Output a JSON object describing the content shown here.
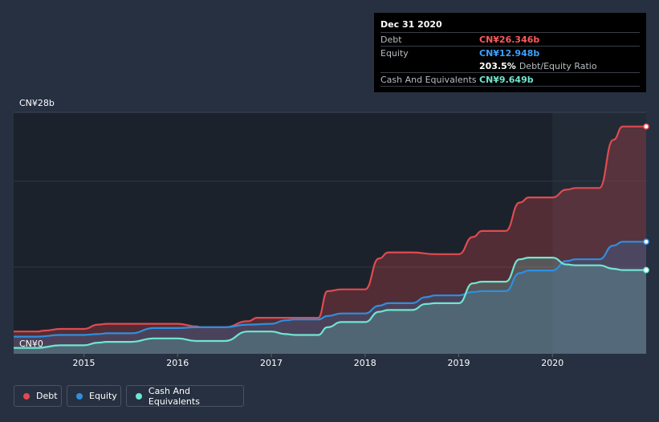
{
  "tooltip": {
    "date": "Dec 31 2020",
    "debt_label": "Debt",
    "debt_value": "CN¥26.346b",
    "equity_label": "Equity",
    "equity_value": "CN¥12.948b",
    "ratio_value": "203.5%",
    "ratio_label": "Debt/Equity Ratio",
    "cash_label": "Cash And Equivalents",
    "cash_value": "CN¥9.649b"
  },
  "legend": {
    "debt": "Debt",
    "equity": "Equity",
    "cash": "Cash And Equivalents"
  },
  "colors": {
    "debt": "#e04b4f",
    "equity": "#2e8fe0",
    "cash": "#6fe6d2",
    "background": "#263040",
    "plot_background": "#1c222c"
  },
  "chart_data": {
    "type": "line",
    "title": "",
    "xlabel": "",
    "ylabel": "",
    "y_unit": "CN¥b",
    "ylim": [
      0,
      28
    ],
    "xlim": [
      2014.25,
      2021.0
    ],
    "x_ticks": [
      2015,
      2016,
      2017,
      2018,
      2019,
      2020
    ],
    "x_tick_labels": [
      "2015",
      "2016",
      "2017",
      "2018",
      "2019",
      "2020"
    ],
    "y_tick_labels": [
      "CN¥0",
      "CN¥28b"
    ],
    "series": [
      {
        "name": "Debt",
        "x": [
          2014.25,
          2014.5,
          2014.58,
          2014.75,
          2015.0,
          2015.15,
          2015.25,
          2015.5,
          2015.75,
          2016.0,
          2016.2,
          2016.25,
          2016.5,
          2016.75,
          2016.85,
          2017.0,
          2017.25,
          2017.5,
          2017.6,
          2017.75,
          2018.0,
          2018.15,
          2018.25,
          2018.5,
          2018.75,
          2019.0,
          2019.15,
          2019.25,
          2019.5,
          2019.65,
          2019.75,
          2020.0,
          2020.15,
          2020.25,
          2020.5,
          2020.65,
          2020.75,
          2021.0
        ],
        "values": [
          2.5,
          2.5,
          2.6,
          2.8,
          2.8,
          3.3,
          3.4,
          3.4,
          3.4,
          3.4,
          3.1,
          3.0,
          3.0,
          3.7,
          4.1,
          4.1,
          4.1,
          4.1,
          7.2,
          7.4,
          7.4,
          11.0,
          11.7,
          11.7,
          11.5,
          11.5,
          13.5,
          14.2,
          14.2,
          17.5,
          18.1,
          18.1,
          19.0,
          19.2,
          19.2,
          24.8,
          26.346,
          26.346
        ]
      },
      {
        "name": "Equity",
        "x": [
          2014.25,
          2014.5,
          2014.75,
          2015.0,
          2015.15,
          2015.25,
          2015.5,
          2015.75,
          2016.0,
          2016.2,
          2016.25,
          2016.5,
          2016.75,
          2017.0,
          2017.15,
          2017.25,
          2017.5,
          2017.6,
          2017.75,
          2018.0,
          2018.15,
          2018.25,
          2018.5,
          2018.65,
          2018.75,
          2019.0,
          2019.15,
          2019.25,
          2019.5,
          2019.65,
          2019.75,
          2020.0,
          2020.15,
          2020.25,
          2020.5,
          2020.65,
          2020.75,
          2021.0
        ],
        "values": [
          1.9,
          1.9,
          2.1,
          2.1,
          2.2,
          2.3,
          2.3,
          2.9,
          2.9,
          3.0,
          3.0,
          3.0,
          3.3,
          3.4,
          3.8,
          3.9,
          3.9,
          4.3,
          4.6,
          4.6,
          5.5,
          5.8,
          5.8,
          6.5,
          6.7,
          6.7,
          7.1,
          7.2,
          7.2,
          9.3,
          9.6,
          9.6,
          10.7,
          10.9,
          10.9,
          12.5,
          12.948,
          12.948
        ]
      },
      {
        "name": "Cash And Equivalents",
        "x": [
          2014.25,
          2014.5,
          2014.75,
          2015.0,
          2015.15,
          2015.25,
          2015.5,
          2015.75,
          2016.0,
          2016.2,
          2016.25,
          2016.5,
          2016.75,
          2017.0,
          2017.15,
          2017.25,
          2017.5,
          2017.6,
          2017.75,
          2018.0,
          2018.15,
          2018.25,
          2018.5,
          2018.65,
          2018.75,
          2019.0,
          2019.15,
          2019.25,
          2019.5,
          2019.65,
          2019.75,
          2020.0,
          2020.15,
          2020.25,
          2020.5,
          2020.65,
          2020.75,
          2021.0
        ],
        "values": [
          0.6,
          0.6,
          0.9,
          0.9,
          1.2,
          1.3,
          1.3,
          1.7,
          1.7,
          1.4,
          1.4,
          1.4,
          2.5,
          2.5,
          2.2,
          2.1,
          2.1,
          3.0,
          3.6,
          3.6,
          4.8,
          5.0,
          5.0,
          5.7,
          5.8,
          5.8,
          8.1,
          8.3,
          8.3,
          10.9,
          11.1,
          11.1,
          10.3,
          10.2,
          10.2,
          9.8,
          9.649,
          9.649
        ]
      }
    ]
  }
}
